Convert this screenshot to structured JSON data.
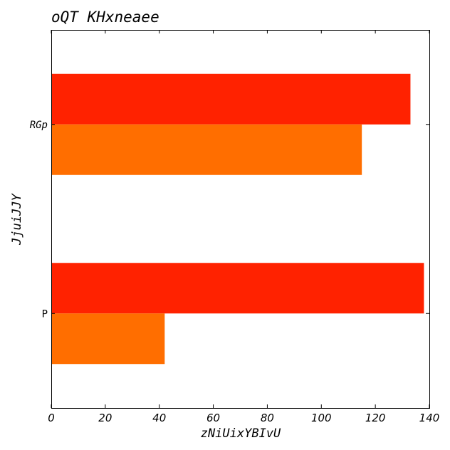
{
  "chart_data": {
    "type": "bar",
    "orientation": "horizontal",
    "title": "oQT KHxneaee",
    "xlabel": "zNiUixYBIvU",
    "ylabel": "JjuiJJY",
    "categories": [
      "P",
      "RGp"
    ],
    "series": [
      {
        "color": "#ff2200",
        "values": [
          138,
          133
        ]
      },
      {
        "color": "#ff6e00",
        "values": [
          42,
          115
        ]
      }
    ],
    "xlim": [
      0,
      140
    ],
    "xticks": [
      0,
      20,
      40,
      60,
      80,
      100,
      120,
      140
    ],
    "grid": false,
    "legend": "none"
  }
}
